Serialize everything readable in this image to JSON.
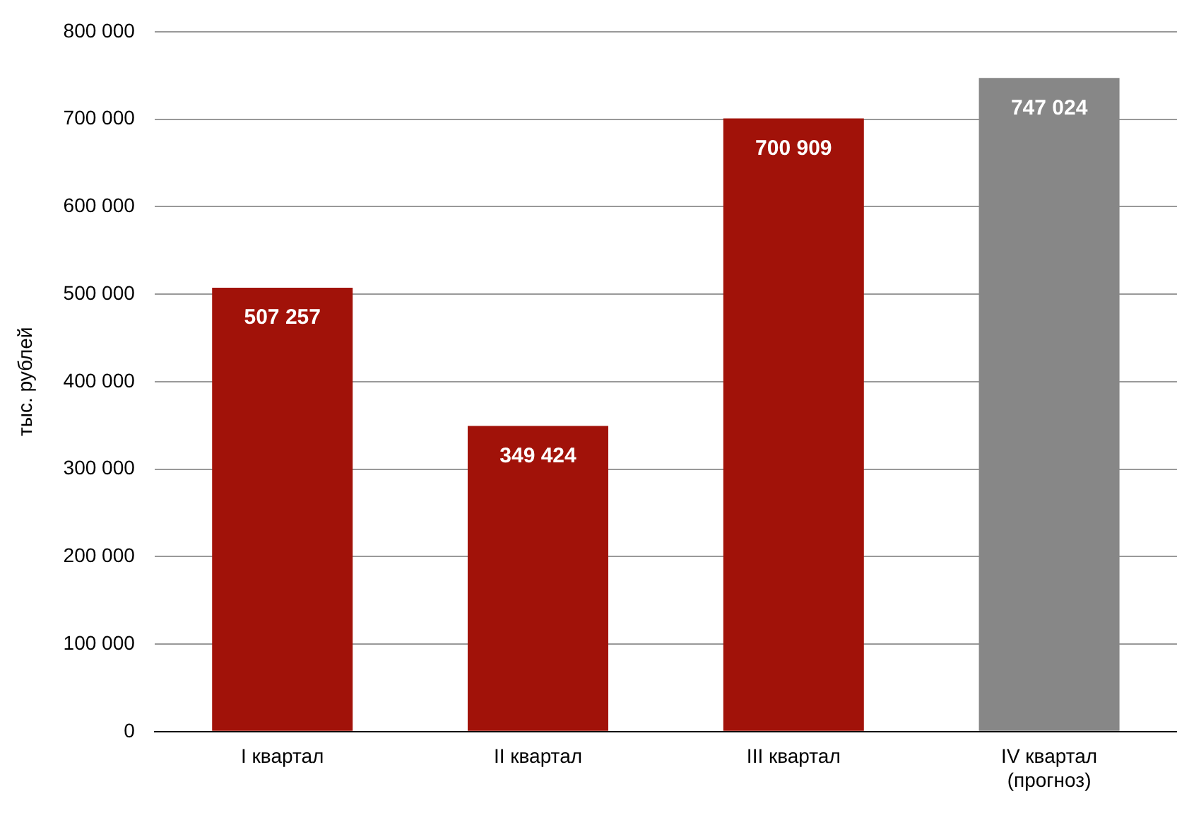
{
  "chart_data": {
    "type": "bar",
    "ylabel": "тыс. рублей",
    "categories": [
      "I квартал",
      "II квартал",
      "III квартал",
      "IV квартал\n(прогноз)"
    ],
    "values": [
      507257,
      349424,
      700909,
      747024
    ],
    "value_labels": [
      "507 257",
      "349 424",
      "700 909",
      "747 024"
    ],
    "colors": [
      "#a11209",
      "#a11209",
      "#a11209",
      "#878787"
    ],
    "ylim": [
      0,
      800000
    ],
    "yticks": [
      {
        "value": 0,
        "label": "0"
      },
      {
        "value": 100000,
        "label": "100 000"
      },
      {
        "value": 200000,
        "label": "200 000"
      },
      {
        "value": 300000,
        "label": "300 000"
      },
      {
        "value": 400000,
        "label": "400 000"
      },
      {
        "value": 500000,
        "label": "500 000"
      },
      {
        "value": 600000,
        "label": "600 000"
      },
      {
        "value": 700000,
        "label": "700 000"
      },
      {
        "value": 800000,
        "label": "800 000"
      }
    ],
    "grid": "y",
    "legend": false
  }
}
